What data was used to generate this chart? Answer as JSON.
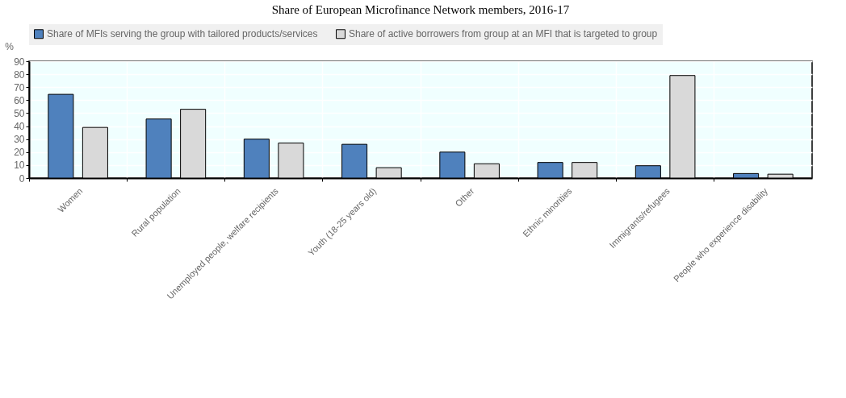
{
  "chart_data": {
    "type": "bar",
    "title": "Share of European Microfinance Network members, 2016-17",
    "ylabel": "%",
    "categories": [
      "Women",
      "Rural population",
      "Unemployed people, welfare recipients",
      "Youth (18-25 years old)",
      "Other",
      "Ethnic minorities",
      "Immigrants/refugees",
      "People who experience disability"
    ],
    "series": [
      {
        "name": "Share of MFIs serving the group with tailored products/services",
        "color": "#4f81bd",
        "values": [
          64.5,
          45.5,
          30,
          26,
          20,
          12,
          9.5,
          3.5
        ]
      },
      {
        "name": "Share of active borrowers from group at an MFI that is targeted to group",
        "color": "#d9d9d9",
        "values": [
          39,
          53,
          27,
          8,
          11,
          12,
          79,
          3
        ]
      }
    ],
    "ylim": [
      0,
      90
    ],
    "yticks": [
      0,
      10,
      20,
      30,
      40,
      50,
      60,
      70,
      80,
      90
    ],
    "grid": true,
    "legend": "top"
  }
}
